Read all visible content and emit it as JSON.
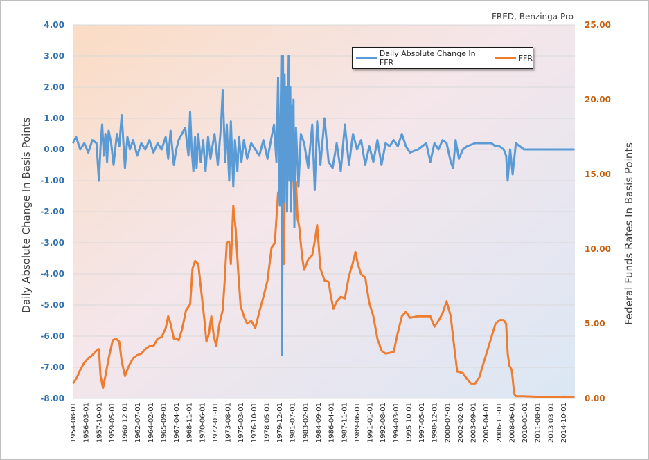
{
  "source_note": "FRED, Benzinga Pro",
  "colors": {
    "change_series": "#5b9bd5",
    "ffr_series": "#ed7d31",
    "left_axis_text": "#2e6fad",
    "right_axis_text": "#c6600f"
  },
  "chart_data": {
    "type": "line",
    "ylabel": "Daily Absolute Change In Basis Points",
    "y2label": "Federal Funds Rates In Basis Points",
    "ylim": [
      -8,
      4
    ],
    "y2lim": [
      0,
      25
    ],
    "yticks": [
      "4.00",
      "3.00",
      "2.00",
      "1.00",
      "0.00",
      "-1.00",
      "-2.00",
      "-3.00",
      "-4.00",
      "-5.00",
      "-6.00",
      "-7.00",
      "-8.00"
    ],
    "y2ticks": [
      "25.00",
      "20.00",
      "15.00",
      "10.00",
      "5.00",
      "0.00"
    ],
    "xlim": [
      1954.583,
      2016.25
    ],
    "xtick_labels": [
      "1954-08-01",
      "1956-03-01",
      "1957-10-01",
      "1959-05-01",
      "1960-12-01",
      "1962-07-01",
      "1964-02-01",
      "1965-09-01",
      "1967-04-01",
      "1968-11-01",
      "1970-06-01",
      "1972-01-01",
      "1973-08-01",
      "1975-03-01",
      "1976-10-01",
      "1978-05-01",
      "1979-12-01",
      "1981-07-01",
      "1983-02-01",
      "1984-09-01",
      "1986-04-01",
      "1987-11-01",
      "1989-06-01",
      "1991-01-01",
      "1992-08-01",
      "1994-03-01",
      "1995-10-01",
      "1997-05-01",
      "1998-12-01",
      "2000-07-01",
      "2002-02-01",
      "2003-09-01",
      "2005-04-01",
      "2006-11-01",
      "2008-06-01",
      "2010-01-01",
      "2011-08-01",
      "2013-03-01",
      "2014-10-01"
    ],
    "legend_position": "top-right",
    "series": [
      {
        "name": "Daily Absolute Change In FFR",
        "axis": "left",
        "x": [
          1954.6,
          1955.0,
          1955.5,
          1956.0,
          1956.5,
          1957.0,
          1957.5,
          1957.8,
          1958.0,
          1958.2,
          1958.4,
          1958.6,
          1958.8,
          1959.0,
          1959.3,
          1959.6,
          1960.0,
          1960.3,
          1960.6,
          1961.0,
          1961.3,
          1961.6,
          1962.0,
          1962.5,
          1963.0,
          1963.5,
          1964.0,
          1964.5,
          1965.0,
          1965.5,
          1966.0,
          1966.3,
          1966.6,
          1967.0,
          1967.3,
          1967.6,
          1968.0,
          1968.4,
          1968.8,
          1969.0,
          1969.2,
          1969.4,
          1969.6,
          1969.8,
          1970.0,
          1970.3,
          1970.6,
          1970.9,
          1971.2,
          1971.5,
          1971.8,
          1972.0,
          1972.4,
          1972.8,
          1973.0,
          1973.3,
          1973.5,
          1973.8,
          1974.0,
          1974.3,
          1974.5,
          1974.8,
          1975.0,
          1975.3,
          1975.6,
          1976.0,
          1976.5,
          1977.0,
          1977.5,
          1978.0,
          1978.5,
          1979.0,
          1979.3,
          1979.6,
          1979.8,
          1980.0,
          1980.2,
          1980.3,
          1980.4,
          1980.5,
          1980.6,
          1980.7,
          1980.8,
          1980.9,
          1981.0,
          1981.1,
          1981.2,
          1981.3,
          1981.4,
          1981.5,
          1981.6,
          1981.7,
          1981.8,
          1982.0,
          1982.3,
          1982.6,
          1983.0,
          1983.5,
          1984.0,
          1984.3,
          1984.6,
          1985.0,
          1985.5,
          1986.0,
          1986.5,
          1987.0,
          1987.5,
          1988.0,
          1988.5,
          1989.0,
          1989.5,
          1990.0,
          1990.5,
          1991.0,
          1991.5,
          1992.0,
          1992.5,
          1993.0,
          1993.5,
          1994.0,
          1994.5,
          1995.0,
          1995.5,
          1996.0,
          1997.0,
          1998.0,
          1998.5,
          1999.0,
          1999.5,
          2000.0,
          2000.5,
          2001.0,
          2001.3,
          2001.6,
          2002.0,
          2002.5,
          2003.0,
          2004.0,
          2005.0,
          2006.0,
          2006.5,
          2007.0,
          2007.5,
          2007.8,
          2008.0,
          2008.3,
          2008.6,
          2009.0,
          2010.0,
          2012.0,
          2014.0,
          2016.2
        ],
        "values": [
          0.2,
          0.4,
          0.0,
          0.2,
          -0.1,
          0.3,
          0.2,
          -1.0,
          0.1,
          0.8,
          -0.2,
          0.5,
          -0.4,
          0.6,
          0.2,
          -0.5,
          0.5,
          0.1,
          1.1,
          -0.6,
          0.4,
          0.0,
          0.3,
          -0.2,
          0.2,
          0.0,
          0.3,
          -0.1,
          0.2,
          0.0,
          0.4,
          -0.3,
          0.6,
          -0.5,
          0.0,
          0.3,
          0.5,
          0.7,
          -0.2,
          1.2,
          0.0,
          -0.7,
          0.4,
          -0.6,
          0.5,
          -0.4,
          0.3,
          -0.7,
          0.4,
          -0.3,
          0.2,
          0.5,
          -0.5,
          0.8,
          1.9,
          -0.4,
          0.8,
          -1.0,
          0.9,
          -1.2,
          0.3,
          -0.7,
          0.4,
          -0.4,
          0.3,
          -0.3,
          0.2,
          0.0,
          -0.2,
          0.3,
          -0.3,
          0.4,
          0.8,
          -0.4,
          2.3,
          -1.8,
          3.0,
          -6.6,
          3.0,
          -1.7,
          2.4,
          -0.7,
          2.0,
          -2.0,
          1.1,
          3.0,
          -1.0,
          2.0,
          -2.0,
          1.4,
          -1.0,
          1.6,
          -2.5,
          0.7,
          -1.2,
          0.5,
          0.2,
          -0.6,
          0.8,
          -1.3,
          0.9,
          -0.5,
          1.0,
          -0.4,
          -0.6,
          0.2,
          -0.7,
          0.8,
          -0.5,
          0.5,
          0.0,
          0.3,
          -0.5,
          0.1,
          -0.4,
          0.3,
          -0.5,
          0.2,
          0.1,
          0.3,
          0.1,
          0.5,
          0.1,
          -0.1,
          0.0,
          0.2,
          -0.4,
          0.2,
          0.0,
          0.3,
          0.2,
          -0.4,
          -0.6,
          0.3,
          -0.3,
          0.0,
          0.1,
          0.2,
          0.2,
          0.2,
          0.1,
          0.1,
          0.0,
          -0.2,
          -1.0,
          0.0,
          -0.8,
          0.2,
          0.0,
          0.0,
          0.0,
          0.0
        ]
      },
      {
        "name": "FFR",
        "axis": "right",
        "x": [
          1954.6,
          1955.0,
          1955.5,
          1956.0,
          1956.5,
          1957.0,
          1957.5,
          1957.8,
          1958.0,
          1958.3,
          1958.6,
          1959.0,
          1959.5,
          1959.9,
          1960.3,
          1960.6,
          1961.0,
          1961.5,
          1962.0,
          1962.5,
          1963.0,
          1963.5,
          1964.0,
          1964.5,
          1965.0,
          1965.5,
          1966.0,
          1966.3,
          1966.6,
          1967.0,
          1967.3,
          1967.6,
          1968.0,
          1968.5,
          1969.0,
          1969.3,
          1969.6,
          1970.0,
          1970.4,
          1970.8,
          1971.0,
          1971.3,
          1971.6,
          1971.9,
          1972.2,
          1972.6,
          1973.0,
          1973.2,
          1973.5,
          1973.8,
          1974.0,
          1974.3,
          1974.6,
          1974.9,
          1975.2,
          1975.6,
          1976.0,
          1976.5,
          1977.0,
          1977.5,
          1978.0,
          1978.5,
          1979.0,
          1979.4,
          1979.8,
          1980.0,
          1980.2,
          1980.35,
          1980.5,
          1980.6,
          1980.75,
          1980.9,
          1981.0,
          1981.2,
          1981.4,
          1981.6,
          1981.8,
          1982.0,
          1982.2,
          1982.4,
          1982.6,
          1982.8,
          1983.0,
          1983.5,
          1984.0,
          1984.3,
          1984.6,
          1985.0,
          1985.5,
          1986.0,
          1986.3,
          1986.6,
          1987.0,
          1987.5,
          1988.0,
          1988.5,
          1989.0,
          1989.3,
          1989.6,
          1990.0,
          1990.5,
          1991.0,
          1991.5,
          1992.0,
          1992.5,
          1993.0,
          1994.0,
          1994.5,
          1995.0,
          1995.5,
          1996.0,
          1997.0,
          1998.0,
          1998.5,
          1999.0,
          1999.5,
          2000.0,
          2000.5,
          2001.0,
          2001.4,
          2001.8,
          2002.5,
          2003.0,
          2003.5,
          2004.0,
          2004.5,
          2005.0,
          2005.5,
          2006.0,
          2006.5,
          2007.0,
          2007.5,
          2007.8,
          2008.0,
          2008.2,
          2008.5,
          2008.8,
          2009.0,
          2010.0,
          2012.0,
          2014.0,
          2015.0,
          2016.2
        ],
        "values": [
          1.0,
          1.3,
          1.9,
          2.4,
          2.7,
          2.9,
          3.2,
          3.3,
          1.5,
          0.7,
          1.5,
          2.7,
          3.9,
          4.0,
          3.8,
          2.5,
          1.5,
          2.2,
          2.7,
          2.9,
          3.0,
          3.3,
          3.5,
          3.5,
          4.0,
          4.1,
          4.7,
          5.5,
          5.0,
          4.0,
          4.0,
          3.9,
          4.6,
          5.9,
          6.3,
          8.7,
          9.2,
          9.0,
          7.0,
          5.0,
          3.8,
          4.3,
          5.5,
          4.2,
          3.5,
          5.0,
          5.9,
          7.5,
          10.4,
          10.5,
          9.0,
          12.9,
          11.3,
          8.5,
          6.2,
          5.5,
          5.0,
          5.2,
          4.7,
          5.8,
          6.8,
          7.9,
          10.1,
          10.4,
          13.8,
          13.9,
          17.5,
          9.5,
          9.0,
          13.0,
          17.0,
          19.0,
          18.7,
          19.1,
          17.8,
          16.2,
          13.0,
          14.5,
          12.0,
          11.5,
          10.3,
          9.3,
          8.6,
          9.3,
          9.6,
          10.5,
          11.6,
          8.7,
          7.9,
          7.8,
          6.8,
          6.0,
          6.5,
          6.8,
          6.7,
          8.2,
          9.1,
          9.8,
          9.0,
          8.3,
          8.1,
          6.4,
          5.5,
          4.0,
          3.2,
          3.0,
          3.1,
          4.4,
          5.5,
          5.8,
          5.4,
          5.5,
          5.5,
          5.5,
          4.8,
          5.2,
          5.7,
          6.5,
          5.5,
          3.6,
          1.8,
          1.7,
          1.3,
          1.0,
          1.0,
          1.4,
          2.3,
          3.2,
          4.1,
          5.0,
          5.25,
          5.25,
          5.0,
          3.0,
          2.2,
          1.9,
          0.3,
          0.15,
          0.15,
          0.1,
          0.1,
          0.12,
          0.1
        ]
      }
    ]
  }
}
